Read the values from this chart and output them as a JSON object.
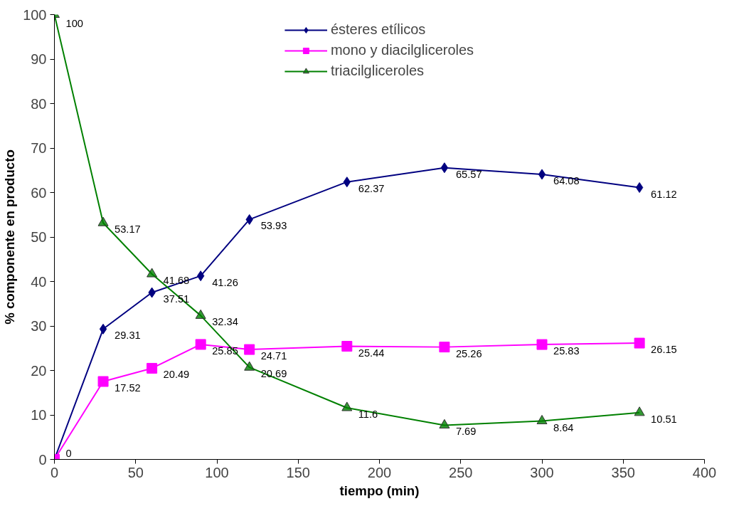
{
  "chart_data": {
    "type": "line",
    "xlabel": "tiempo (min)",
    "ylabel": "% componente en producto",
    "x": [
      0,
      30,
      60,
      90,
      120,
      180,
      240,
      300,
      360
    ],
    "series": [
      {
        "name": "ésteres etílicos",
        "color": "#000080",
        "marker": "diamond",
        "values": [
          0,
          29.31,
          37.51,
          41.26,
          53.93,
          62.37,
          65.57,
          64.08,
          61.12
        ],
        "value_labels": [
          "0",
          "29.31",
          "37.51",
          "41.26",
          "53.93",
          "62.37",
          "65.57",
          "64.08",
          "61.12"
        ]
      },
      {
        "name": "mono y diacilgliceroles",
        "color": "#ff00ff",
        "marker": "square",
        "values": [
          0,
          17.52,
          20.49,
          25.85,
          24.71,
          25.44,
          25.26,
          25.83,
          26.15
        ],
        "value_labels": [
          null,
          "17.52",
          "20.49",
          "25.85",
          "24.71",
          "25.44",
          "25.26",
          "25.83",
          "26.15"
        ]
      },
      {
        "name": "triacilgliceroles",
        "color": "#008000",
        "marker": "triangle",
        "values": [
          100,
          53.17,
          41.68,
          32.34,
          20.69,
          11.6,
          7.69,
          8.64,
          10.51
        ],
        "value_labels": [
          "100",
          "53.17",
          "41.68",
          "32.34",
          "20.69",
          "11.6",
          "7.69",
          "8.64",
          "10.51"
        ]
      }
    ],
    "xlim": [
      0,
      400
    ],
    "xticks": [
      0,
      50,
      100,
      150,
      200,
      250,
      300,
      350,
      400
    ],
    "ylim": [
      0,
      100
    ],
    "yticks": [
      0,
      10,
      20,
      30,
      40,
      50,
      60,
      70,
      80,
      90,
      100
    ],
    "grid": false,
    "legend": "top",
    "line_style": "solid"
  }
}
